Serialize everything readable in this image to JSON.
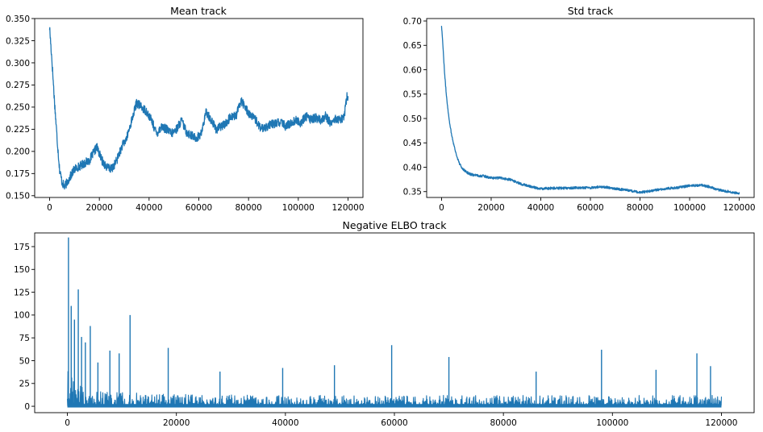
{
  "chart_data": [
    {
      "id": "mean",
      "type": "line",
      "title": "Mean track",
      "xlabel": "",
      "ylabel": "",
      "xlim": [
        -6000,
        126000
      ],
      "ylim": [
        0.148,
        0.35
      ],
      "grid": false,
      "legend": "none",
      "xticks": [
        0,
        20000,
        40000,
        60000,
        80000,
        100000,
        120000
      ],
      "xtick_labels": [
        "0",
        "20000",
        "40000",
        "60000",
        "80000",
        "100000",
        "120000"
      ],
      "yticks": [
        0.15,
        0.175,
        0.2,
        0.225,
        0.25,
        0.275,
        0.3,
        0.325,
        0.35
      ],
      "ytick_labels": [
        "0.150",
        "0.175",
        "0.200",
        "0.225",
        "0.250",
        "0.275",
        "0.300",
        "0.325",
        "0.350"
      ],
      "series": [
        {
          "color": "#1f77b4",
          "noise": 0.005,
          "x": [
            0,
            1000,
            2000,
            3000,
            4000,
            5000,
            6000,
            8000,
            10000,
            13000,
            16000,
            19000,
            21000,
            23000,
            25000,
            27000,
            29000,
            31000,
            33000,
            35000,
            37000,
            39000,
            41000,
            43000,
            45000,
            47000,
            49000,
            51000,
            53000,
            55000,
            57000,
            59000,
            61000,
            63000,
            65000,
            67000,
            69000,
            71000,
            73000,
            75000,
            77000,
            79000,
            81000,
            83000,
            85000,
            87000,
            89000,
            91000,
            93000,
            95000,
            97000,
            99000,
            101000,
            103000,
            105000,
            107000,
            109000,
            111000,
            113000,
            115000,
            117000,
            118500,
            119500,
            120000
          ],
          "y": [
            0.34,
            0.3,
            0.255,
            0.215,
            0.18,
            0.165,
            0.16,
            0.17,
            0.18,
            0.185,
            0.19,
            0.205,
            0.19,
            0.182,
            0.18,
            0.19,
            0.205,
            0.215,
            0.235,
            0.255,
            0.25,
            0.245,
            0.235,
            0.22,
            0.228,
            0.225,
            0.22,
            0.225,
            0.235,
            0.222,
            0.218,
            0.215,
            0.22,
            0.245,
            0.235,
            0.225,
            0.228,
            0.232,
            0.24,
            0.24,
            0.258,
            0.248,
            0.24,
            0.235,
            0.225,
            0.228,
            0.23,
            0.232,
            0.233,
            0.228,
            0.232,
            0.235,
            0.232,
            0.24,
            0.236,
            0.238,
            0.235,
            0.24,
            0.232,
            0.237,
            0.235,
            0.24,
            0.262,
            0.26
          ]
        }
      ]
    },
    {
      "id": "std",
      "type": "line",
      "title": "Std track",
      "xlabel": "",
      "ylabel": "",
      "xlim": [
        -6000,
        126000
      ],
      "ylim": [
        0.338,
        0.705
      ],
      "grid": false,
      "legend": "none",
      "xticks": [
        0,
        20000,
        40000,
        60000,
        80000,
        100000,
        120000
      ],
      "xtick_labels": [
        "0",
        "20000",
        "40000",
        "60000",
        "80000",
        "100000",
        "120000"
      ],
      "yticks": [
        0.35,
        0.4,
        0.45,
        0.5,
        0.55,
        0.6,
        0.65,
        0.7
      ],
      "ytick_labels": [
        "0.35",
        "0.40",
        "0.45",
        "0.50",
        "0.55",
        "0.60",
        "0.65",
        "0.70"
      ],
      "series": [
        {
          "color": "#1f77b4",
          "noise": 0.0025,
          "x": [
            0,
            500,
            1000,
            1500,
            2000,
            3000,
            4000,
            5000,
            6000,
            7000,
            8000,
            10000,
            12000,
            14000,
            17000,
            20000,
            24000,
            28000,
            32000,
            36000,
            40000,
            45000,
            50000,
            55000,
            60000,
            65000,
            70000,
            75000,
            80000,
            85000,
            90000,
            95000,
            100000,
            105000,
            108000,
            112000,
            116000,
            120000
          ],
          "y": [
            0.69,
            0.655,
            0.61,
            0.575,
            0.545,
            0.5,
            0.468,
            0.445,
            0.425,
            0.41,
            0.4,
            0.39,
            0.385,
            0.383,
            0.382,
            0.378,
            0.378,
            0.374,
            0.366,
            0.36,
            0.356,
            0.357,
            0.357,
            0.358,
            0.358,
            0.36,
            0.356,
            0.353,
            0.348,
            0.352,
            0.356,
            0.358,
            0.362,
            0.363,
            0.36,
            0.353,
            0.35,
            0.346
          ]
        }
      ]
    },
    {
      "id": "elbo",
      "type": "line",
      "title": "Negative ELBO track",
      "xlabel": "",
      "ylabel": "",
      "xlim": [
        -6000,
        126000
      ],
      "ylim": [
        -7,
        190
      ],
      "grid": false,
      "legend": "none",
      "xticks": [
        0,
        20000,
        40000,
        60000,
        80000,
        100000,
        120000
      ],
      "xtick_labels": [
        "0",
        "20000",
        "40000",
        "60000",
        "80000",
        "100000",
        "120000"
      ],
      "yticks": [
        0,
        25,
        50,
        75,
        100,
        125,
        150,
        175
      ],
      "ytick_labels": [
        "0",
        "25",
        "50",
        "75",
        "100",
        "125",
        "150",
        "175"
      ],
      "series": [
        {
          "color": "#1f77b4",
          "style": "dense-noise",
          "floor": 0,
          "envelope_x": [
            0,
            500,
            1500,
            3000,
            5000,
            10000,
            20000,
            40000,
            60000,
            80000,
            100000,
            120000
          ],
          "envelope_y": [
            90,
            60,
            45,
            35,
            28,
            25,
            22,
            20,
            20,
            20,
            20,
            20
          ],
          "spikes": [
            {
              "x": 200,
              "y": 185
            },
            {
              "x": 700,
              "y": 110
            },
            {
              "x": 1300,
              "y": 95
            },
            {
              "x": 2000,
              "y": 128
            },
            {
              "x": 2600,
              "y": 76
            },
            {
              "x": 3300,
              "y": 70
            },
            {
              "x": 4200,
              "y": 88
            },
            {
              "x": 5600,
              "y": 48
            },
            {
              "x": 7800,
              "y": 61
            },
            {
              "x": 9500,
              "y": 58
            },
            {
              "x": 11500,
              "y": 100
            },
            {
              "x": 18500,
              "y": 64
            },
            {
              "x": 28000,
              "y": 38
            },
            {
              "x": 39500,
              "y": 42
            },
            {
              "x": 49000,
              "y": 45
            },
            {
              "x": 59500,
              "y": 67
            },
            {
              "x": 70000,
              "y": 54
            },
            {
              "x": 86000,
              "y": 38
            },
            {
              "x": 98000,
              "y": 62
            },
            {
              "x": 108000,
              "y": 40
            },
            {
              "x": 115500,
              "y": 58
            },
            {
              "x": 118000,
              "y": 44
            }
          ]
        }
      ]
    }
  ]
}
